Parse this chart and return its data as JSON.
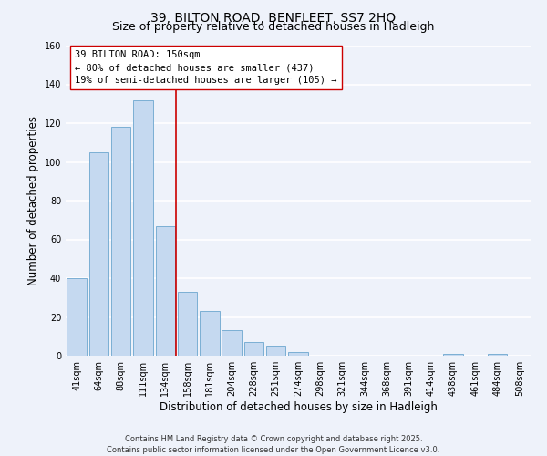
{
  "title": "39, BILTON ROAD, BENFLEET, SS7 2HQ",
  "subtitle": "Size of property relative to detached houses in Hadleigh",
  "xlabel": "Distribution of detached houses by size in Hadleigh",
  "ylabel": "Number of detached properties",
  "categories": [
    "41sqm",
    "64sqm",
    "88sqm",
    "111sqm",
    "134sqm",
    "158sqm",
    "181sqm",
    "204sqm",
    "228sqm",
    "251sqm",
    "274sqm",
    "298sqm",
    "321sqm",
    "344sqm",
    "368sqm",
    "391sqm",
    "414sqm",
    "438sqm",
    "461sqm",
    "484sqm",
    "508sqm"
  ],
  "values": [
    40,
    105,
    118,
    132,
    67,
    33,
    23,
    13,
    7,
    5,
    2,
    0,
    0,
    0,
    0,
    0,
    0,
    1,
    0,
    1,
    0
  ],
  "bar_color": "#c5d9f0",
  "bar_edge_color": "#7bafd4",
  "ylim": [
    0,
    160
  ],
  "yticks": [
    0,
    20,
    40,
    60,
    80,
    100,
    120,
    140,
    160
  ],
  "vline_color": "#cc0000",
  "vline_x": 4.5,
  "annotation_line1": "39 BILTON ROAD: 150sqm",
  "annotation_line2": "← 80% of detached houses are smaller (437)",
  "annotation_line3": "19% of semi-detached houses are larger (105) →",
  "annotation_box_color": "#ffffff",
  "annotation_box_edge": "#cc0000",
  "footer_line1": "Contains HM Land Registry data © Crown copyright and database right 2025.",
  "footer_line2": "Contains public sector information licensed under the Open Government Licence v3.0.",
  "background_color": "#eef2fa",
  "grid_color": "#ffffff",
  "title_fontsize": 10,
  "subtitle_fontsize": 9,
  "axis_label_fontsize": 8.5,
  "tick_fontsize": 7,
  "annotation_fontsize": 7.5,
  "footer_fontsize": 6
}
